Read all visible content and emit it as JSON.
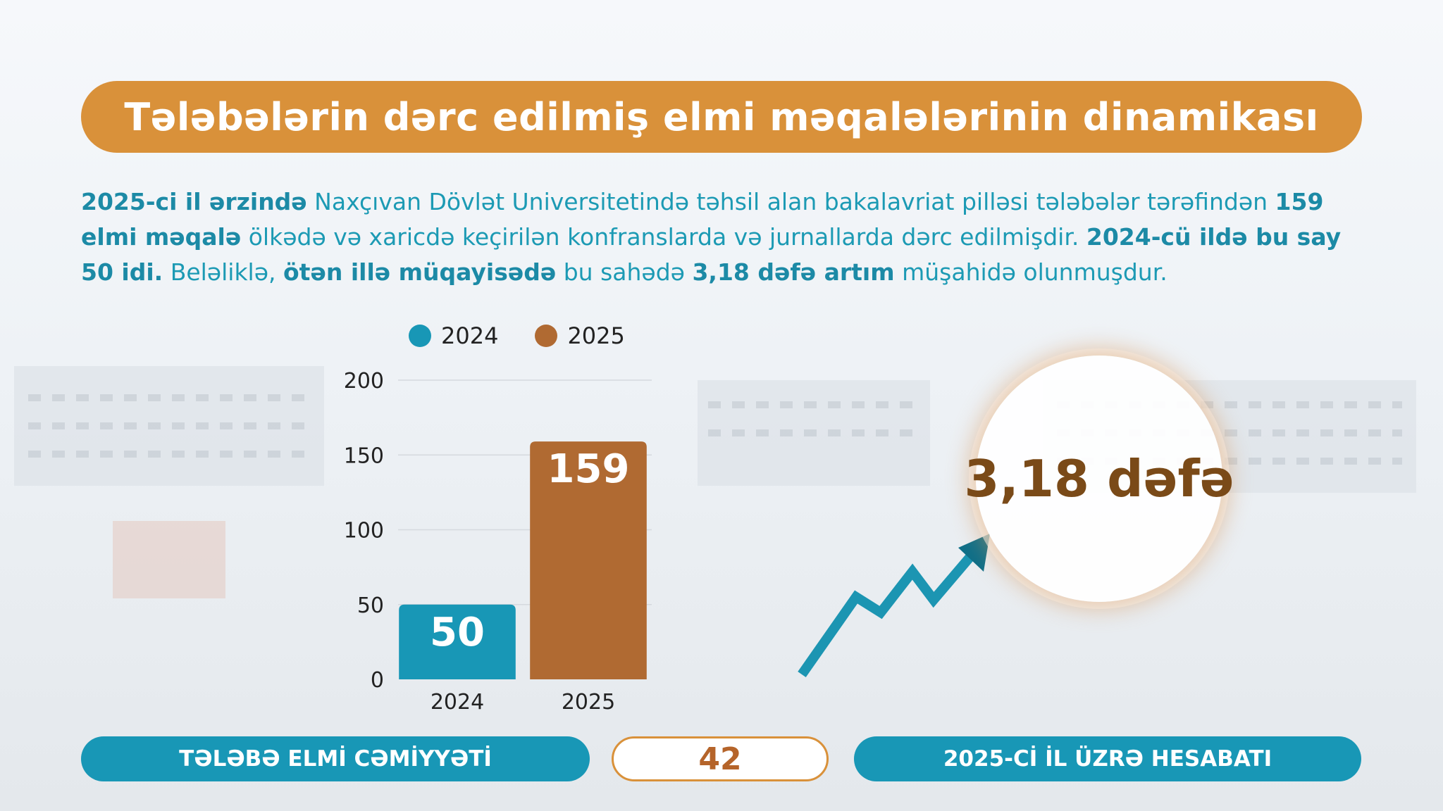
{
  "title": "Tələbələrin dərc edilmiş elmi məqalələrinin dinamikası",
  "paragraph": {
    "segments": [
      {
        "text": "2025-ci il ərzində",
        "bold": true
      },
      {
        "text": " Naxçıvan Dövlət Universitetində təhsil alan bakalavriat pilləsi tələbələr tərəfindən ",
        "bold": false
      },
      {
        "text": "159 elmi məqalə",
        "bold": true
      },
      {
        "text": " ölkədə və xaricdə keçirilən konfranslarda və jurnallarda dərc edilmişdir. ",
        "bold": false
      },
      {
        "text": "2024-cü ildə bu say 50 idi.",
        "bold": true
      },
      {
        "text": " Beləliklə, ",
        "bold": false
      },
      {
        "text": "ötən illə müqayisədə",
        "bold": true
      },
      {
        "text": " bu sahədə ",
        "bold": false
      },
      {
        "text": "3,18 dəfə artım",
        "bold": true
      },
      {
        "text": " müşahidə olunmuşdur.",
        "bold": false
      }
    ]
  },
  "legend": [
    {
      "label": "2024",
      "color": "#1897b6"
    },
    {
      "label": "2025",
      "color": "#b06a32"
    }
  ],
  "chart_data": {
    "type": "bar",
    "categories": [
      "2024",
      "2025"
    ],
    "values": [
      50,
      159
    ],
    "colors": [
      "#1897b6",
      "#b06a32"
    ],
    "ylim": [
      0,
      200
    ],
    "yticks": [
      0,
      50,
      100,
      150,
      200
    ],
    "data_labels": [
      "50",
      "159"
    ],
    "grid": true,
    "legend_position": "top"
  },
  "ratio_badge": "3,18 dəfə",
  "footer": {
    "left": "TƏLƏBƏ ELMİ CƏMİYYƏTİ",
    "page_number": "42",
    "right": "2025-Cİ İL ÜZRƏ HESABATI"
  },
  "colors": {
    "accent_orange": "#d9913a",
    "accent_teal": "#1897b6",
    "brown": "#b06a32",
    "ratio_text": "#7a4a18"
  }
}
